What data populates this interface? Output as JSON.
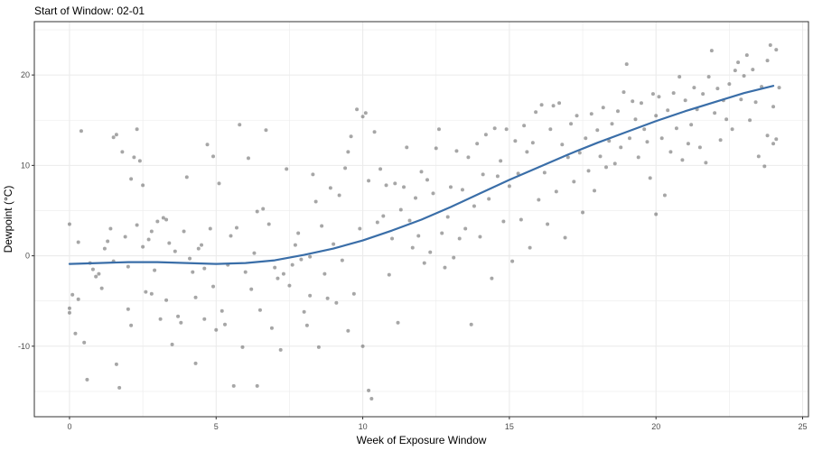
{
  "chart_data": {
    "type": "scatter",
    "title": "Start of Window: 02-01",
    "xlabel": "Week of Exposure Window",
    "ylabel": "Dewpoint (°C)",
    "xlim": [
      -1.2,
      25.2
    ],
    "ylim": [
      -17.8,
      25.9
    ],
    "x_ticks": [
      0,
      5,
      10,
      15,
      20,
      25
    ],
    "y_ticks": [
      -10,
      0,
      10,
      20
    ],
    "x_tick_labels": [
      "0",
      "5",
      "10",
      "15",
      "20",
      "25"
    ],
    "y_tick_labels": [
      "-10",
      "0",
      "10",
      "20"
    ],
    "grid": true,
    "theme": "bw",
    "colors": {
      "points": "#4d4d4d",
      "smooth_line": "#3a6ea8",
      "grid": "#ebebeb",
      "panel_border": "#333333"
    },
    "series": [
      {
        "kind": "points",
        "points": [
          [
            0.0,
            3.5
          ],
          [
            0.0,
            -5.8
          ],
          [
            0.0,
            -6.3
          ],
          [
            0.1,
            -4.3
          ],
          [
            0.2,
            -8.6
          ],
          [
            0.3,
            1.5
          ],
          [
            0.3,
            -4.8
          ],
          [
            0.4,
            13.8
          ],
          [
            0.5,
            -9.6
          ],
          [
            0.6,
            -13.7
          ],
          [
            0.7,
            -0.8
          ],
          [
            0.8,
            -1.5
          ],
          [
            0.9,
            -2.3
          ],
          [
            1.0,
            -2.0
          ],
          [
            1.1,
            -3.6
          ],
          [
            1.2,
            0.8
          ],
          [
            1.3,
            1.6
          ],
          [
            1.4,
            3.0
          ],
          [
            1.5,
            -0.6
          ],
          [
            1.5,
            13.1
          ],
          [
            1.6,
            13.4
          ],
          [
            1.6,
            -12.0
          ],
          [
            1.7,
            -14.6
          ],
          [
            1.8,
            11.5
          ],
          [
            1.9,
            2.1
          ],
          [
            2.0,
            -1.2
          ],
          [
            2.0,
            -5.9
          ],
          [
            2.1,
            8.5
          ],
          [
            2.1,
            -7.7
          ],
          [
            2.2,
            10.9
          ],
          [
            2.3,
            14.0
          ],
          [
            2.3,
            3.4
          ],
          [
            2.4,
            10.5
          ],
          [
            2.5,
            1.0
          ],
          [
            2.5,
            7.8
          ],
          [
            2.6,
            -4.0
          ],
          [
            2.7,
            1.8
          ],
          [
            2.8,
            2.7
          ],
          [
            2.8,
            -4.2
          ],
          [
            2.9,
            -1.6
          ],
          [
            3.0,
            3.8
          ],
          [
            3.1,
            -7.0
          ],
          [
            3.2,
            4.2
          ],
          [
            3.3,
            4.0
          ],
          [
            3.3,
            -4.9
          ],
          [
            3.4,
            1.4
          ],
          [
            3.5,
            -9.8
          ],
          [
            3.6,
            0.5
          ],
          [
            3.7,
            -6.7
          ],
          [
            3.8,
            -7.4
          ],
          [
            3.9,
            2.7
          ],
          [
            4.0,
            8.7
          ],
          [
            4.1,
            -0.3
          ],
          [
            4.2,
            -1.8
          ],
          [
            4.3,
            -11.9
          ],
          [
            4.3,
            -4.6
          ],
          [
            4.4,
            0.8
          ],
          [
            4.5,
            1.2
          ],
          [
            4.6,
            -7.0
          ],
          [
            4.6,
            -1.4
          ],
          [
            4.7,
            12.3
          ],
          [
            4.8,
            3.0
          ],
          [
            4.9,
            11.0
          ],
          [
            4.9,
            -3.4
          ],
          [
            5.0,
            -8.2
          ],
          [
            5.1,
            8.0
          ],
          [
            5.2,
            -6.1
          ],
          [
            5.3,
            -7.6
          ],
          [
            5.4,
            -1.0
          ],
          [
            5.5,
            2.2
          ],
          [
            5.6,
            -14.4
          ],
          [
            5.7,
            3.1
          ],
          [
            5.8,
            14.5
          ],
          [
            5.9,
            -10.1
          ],
          [
            6.0,
            -1.8
          ],
          [
            6.1,
            10.8
          ],
          [
            6.2,
            -3.7
          ],
          [
            6.3,
            0.3
          ],
          [
            6.4,
            -14.4
          ],
          [
            6.4,
            4.9
          ],
          [
            6.5,
            -6.0
          ],
          [
            6.6,
            5.2
          ],
          [
            6.7,
            13.9
          ],
          [
            6.8,
            3.5
          ],
          [
            6.9,
            -8.0
          ],
          [
            7.0,
            -1.3
          ],
          [
            7.1,
            -2.5
          ],
          [
            7.2,
            -10.4
          ],
          [
            7.3,
            -2.0
          ],
          [
            7.4,
            9.6
          ],
          [
            7.5,
            -3.3
          ],
          [
            7.6,
            -1.0
          ],
          [
            7.7,
            1.2
          ],
          [
            7.8,
            2.5
          ],
          [
            7.9,
            -0.4
          ],
          [
            8.0,
            -6.2
          ],
          [
            8.1,
            -7.7
          ],
          [
            8.2,
            -0.1
          ],
          [
            8.2,
            -4.4
          ],
          [
            8.3,
            9.0
          ],
          [
            8.4,
            6.0
          ],
          [
            8.5,
            -10.1
          ],
          [
            8.6,
            3.3
          ],
          [
            8.7,
            -2.0
          ],
          [
            8.8,
            -4.7
          ],
          [
            8.9,
            7.5
          ],
          [
            9.0,
            1.3
          ],
          [
            9.1,
            -5.2
          ],
          [
            9.2,
            6.7
          ],
          [
            9.3,
            -0.5
          ],
          [
            9.4,
            9.7
          ],
          [
            9.5,
            11.5
          ],
          [
            9.5,
            -8.3
          ],
          [
            9.6,
            13.2
          ],
          [
            9.7,
            -4.2
          ],
          [
            9.8,
            16.2
          ],
          [
            9.9,
            3.0
          ],
          [
            10.0,
            15.4
          ],
          [
            10.0,
            -10.0
          ],
          [
            10.1,
            15.8
          ],
          [
            10.2,
            8.3
          ],
          [
            10.2,
            -14.9
          ],
          [
            10.3,
            -15.8
          ],
          [
            10.4,
            13.7
          ],
          [
            10.5,
            3.7
          ],
          [
            10.6,
            9.6
          ],
          [
            10.7,
            4.4
          ],
          [
            10.8,
            7.8
          ],
          [
            10.9,
            -2.1
          ],
          [
            11.0,
            1.9
          ],
          [
            11.1,
            8.0
          ],
          [
            11.2,
            -7.4
          ],
          [
            11.3,
            5.1
          ],
          [
            11.4,
            7.6
          ],
          [
            11.5,
            12.0
          ],
          [
            11.6,
            3.9
          ],
          [
            11.7,
            0.9
          ],
          [
            11.8,
            6.4
          ],
          [
            11.9,
            2.2
          ],
          [
            12.0,
            9.3
          ],
          [
            12.1,
            -0.8
          ],
          [
            12.2,
            8.4
          ],
          [
            12.3,
            0.4
          ],
          [
            12.4,
            6.9
          ],
          [
            12.5,
            11.9
          ],
          [
            12.6,
            14.0
          ],
          [
            12.7,
            2.5
          ],
          [
            12.8,
            -1.3
          ],
          [
            12.9,
            4.3
          ],
          [
            13.0,
            7.6
          ],
          [
            13.1,
            -0.2
          ],
          [
            13.2,
            11.6
          ],
          [
            13.3,
            1.9
          ],
          [
            13.4,
            7.3
          ],
          [
            13.5,
            3.0
          ],
          [
            13.6,
            10.9
          ],
          [
            13.7,
            -7.6
          ],
          [
            13.8,
            5.5
          ],
          [
            13.9,
            12.4
          ],
          [
            14.0,
            2.1
          ],
          [
            14.1,
            9.0
          ],
          [
            14.2,
            13.4
          ],
          [
            14.3,
            6.3
          ],
          [
            14.4,
            -2.5
          ],
          [
            14.5,
            14.1
          ],
          [
            14.6,
            8.8
          ],
          [
            14.7,
            10.5
          ],
          [
            14.8,
            3.8
          ],
          [
            14.9,
            14.0
          ],
          [
            15.0,
            7.7
          ],
          [
            15.1,
            -0.6
          ],
          [
            15.2,
            12.7
          ],
          [
            15.3,
            9.1
          ],
          [
            15.4,
            4.0
          ],
          [
            15.5,
            14.4
          ],
          [
            15.6,
            11.5
          ],
          [
            15.7,
            0.9
          ],
          [
            15.8,
            12.5
          ],
          [
            15.9,
            15.9
          ],
          [
            16.0,
            6.2
          ],
          [
            16.1,
            16.7
          ],
          [
            16.2,
            9.2
          ],
          [
            16.3,
            3.5
          ],
          [
            16.4,
            14.0
          ],
          [
            16.5,
            16.6
          ],
          [
            16.6,
            7.1
          ],
          [
            16.7,
            16.9
          ],
          [
            16.8,
            12.3
          ],
          [
            16.9,
            2.0
          ],
          [
            17.0,
            10.9
          ],
          [
            17.1,
            14.6
          ],
          [
            17.2,
            8.2
          ],
          [
            17.3,
            15.5
          ],
          [
            17.4,
            11.4
          ],
          [
            17.5,
            4.8
          ],
          [
            17.6,
            13.0
          ],
          [
            17.7,
            9.4
          ],
          [
            17.8,
            15.7
          ],
          [
            17.9,
            7.2
          ],
          [
            18.0,
            13.9
          ],
          [
            18.1,
            11.0
          ],
          [
            18.2,
            16.4
          ],
          [
            18.3,
            9.8
          ],
          [
            18.4,
            12.7
          ],
          [
            18.5,
            14.6
          ],
          [
            18.6,
            10.2
          ],
          [
            18.7,
            16.0
          ],
          [
            18.8,
            12.0
          ],
          [
            18.9,
            18.1
          ],
          [
            19.0,
            21.2
          ],
          [
            19.1,
            13.0
          ],
          [
            19.2,
            17.1
          ],
          [
            19.3,
            15.1
          ],
          [
            19.4,
            10.9
          ],
          [
            19.5,
            16.9
          ],
          [
            19.6,
            14.0
          ],
          [
            19.7,
            12.6
          ],
          [
            19.8,
            8.6
          ],
          [
            19.9,
            17.9
          ],
          [
            20.0,
            4.6
          ],
          [
            20.0,
            15.5
          ],
          [
            20.1,
            17.6
          ],
          [
            20.2,
            13.0
          ],
          [
            20.3,
            6.7
          ],
          [
            20.4,
            16.1
          ],
          [
            20.5,
            11.5
          ],
          [
            20.6,
            18.0
          ],
          [
            20.7,
            14.1
          ],
          [
            20.8,
            19.8
          ],
          [
            20.9,
            10.6
          ],
          [
            21.0,
            17.2
          ],
          [
            21.1,
            12.4
          ],
          [
            21.2,
            14.5
          ],
          [
            21.3,
            18.6
          ],
          [
            21.4,
            16.2
          ],
          [
            21.5,
            12.0
          ],
          [
            21.6,
            17.9
          ],
          [
            21.7,
            10.3
          ],
          [
            21.8,
            19.8
          ],
          [
            21.9,
            22.7
          ],
          [
            22.0,
            15.8
          ],
          [
            22.1,
            18.5
          ],
          [
            22.2,
            12.8
          ],
          [
            22.3,
            17.2
          ],
          [
            22.4,
            15.1
          ],
          [
            22.5,
            19.0
          ],
          [
            22.6,
            14.0
          ],
          [
            22.7,
            20.5
          ],
          [
            22.8,
            21.4
          ],
          [
            22.9,
            17.3
          ],
          [
            23.0,
            19.9
          ],
          [
            23.1,
            22.2
          ],
          [
            23.2,
            15.0
          ],
          [
            23.3,
            20.6
          ],
          [
            23.4,
            17.0
          ],
          [
            23.5,
            11.0
          ],
          [
            23.6,
            18.7
          ],
          [
            23.7,
            9.9
          ],
          [
            23.8,
            13.3
          ],
          [
            23.8,
            21.6
          ],
          [
            23.9,
            23.3
          ],
          [
            24.0,
            12.4
          ],
          [
            24.0,
            16.5
          ],
          [
            24.1,
            22.8
          ],
          [
            24.1,
            12.9
          ],
          [
            24.2,
            18.6
          ]
        ]
      },
      {
        "kind": "smooth_line",
        "x": [
          0,
          1,
          2,
          3,
          4,
          5,
          6,
          7,
          8,
          9,
          10,
          11,
          12,
          13,
          14,
          15,
          16,
          17,
          18,
          19,
          20,
          21,
          22,
          23,
          24
        ],
        "y": [
          -0.9,
          -0.8,
          -0.7,
          -0.7,
          -0.8,
          -0.9,
          -0.8,
          -0.5,
          0.1,
          0.8,
          1.7,
          2.8,
          4.0,
          5.4,
          6.9,
          8.4,
          9.8,
          11.2,
          12.5,
          13.7,
          14.9,
          16.0,
          17.0,
          18.0,
          18.8
        ]
      }
    ]
  }
}
